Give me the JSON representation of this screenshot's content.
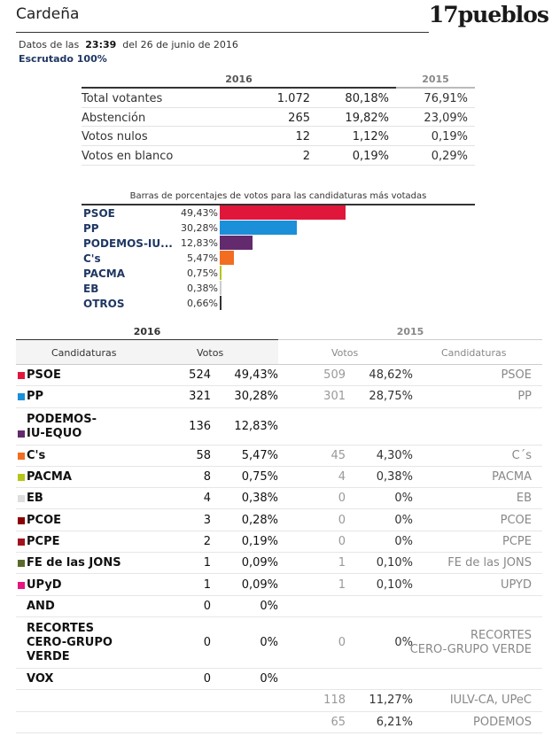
{
  "header": {
    "town": "Cardeña",
    "logo": "17pueblos"
  },
  "meta": {
    "data_prefix": "Datos de las",
    "time": "23:39",
    "date_text": "del 26 de junio de 2016",
    "scrutiny": "Escrutado 100%"
  },
  "summary": {
    "year_2016": "2016",
    "year_2015": "2015",
    "rows": [
      {
        "label": "Total votantes",
        "votes": "1.072",
        "pct2016": "80,18%",
        "pct2015": "76,91%"
      },
      {
        "label": "Abstención",
        "votes": "265",
        "pct2016": "19,82%",
        "pct2015": "23,09%"
      },
      {
        "label": "Votos nulos",
        "votes": "12",
        "pct2016": "1,12%",
        "pct2015": "0,19%"
      },
      {
        "label": "Votos en blanco",
        "votes": "2",
        "pct2016": "0,19%",
        "pct2015": "0,29%"
      }
    ]
  },
  "bars": {
    "title": "Barras de porcentajes de votos para las candidaturas más votadas",
    "items": [
      {
        "name": "PSOE",
        "pct_label": "49,43%",
        "value": 49.43,
        "color": "#e0173b"
      },
      {
        "name": "PP",
        "pct_label": "30,28%",
        "value": 30.28,
        "color": "#1b8fd8"
      },
      {
        "name": "PODEMOS-IU...",
        "pct_label": "12,83%",
        "value": 12.83,
        "color": "#632a6d"
      },
      {
        "name": "C's",
        "pct_label": "5,47%",
        "value": 5.47,
        "color": "#f26d21"
      },
      {
        "name": "PACMA",
        "pct_label": "0,75%",
        "value": 0.75,
        "color": "#b6c51a"
      },
      {
        "name": "EB",
        "pct_label": "0,38%",
        "value": 0.38,
        "color": "#cccccc"
      },
      {
        "name": "OTROS",
        "pct_label": "0,66%",
        "value": 0.66,
        "color": "#333333"
      }
    ]
  },
  "results": {
    "year_2016": "2016",
    "year_2015": "2015",
    "col_candidaturas_2016": "Candidaturas",
    "col_votos_2016": "Votos",
    "col_votos_2015": "Votos",
    "col_candidaturas_2015": "Candidaturas",
    "rows": [
      {
        "name": "PSOE",
        "color": "#e0173b",
        "v2016": "524",
        "p2016": "49,43%",
        "v2015": "509",
        "p2015": "48,62%",
        "n2015": "PSOE"
      },
      {
        "name": "PP",
        "color": "#1b8fd8",
        "v2016": "321",
        "p2016": "30,28%",
        "v2015": "301",
        "p2015": "28,75%",
        "n2015": "PP"
      },
      {
        "name": "PODEMOS-\nIU-EQUO",
        "color": "#632a6d",
        "v2016": "136",
        "p2016": "12,83%",
        "v2015": "",
        "p2015": "",
        "n2015": ""
      },
      {
        "name": "C's",
        "color": "#f26d21",
        "v2016": "58",
        "p2016": "5,47%",
        "v2015": "45",
        "p2015": "4,30%",
        "n2015": "C´s"
      },
      {
        "name": "PACMA",
        "color": "#b6c51a",
        "v2016": "8",
        "p2016": "0,75%",
        "v2015": "4",
        "p2015": "0,38%",
        "n2015": "PACMA"
      },
      {
        "name": "EB",
        "color": "#dddddd",
        "v2016": "4",
        "p2016": "0,38%",
        "v2015": "0",
        "p2015": "0%",
        "n2015": "EB"
      },
      {
        "name": "PCOE",
        "color": "#8b0000",
        "v2016": "3",
        "p2016": "0,28%",
        "v2015": "0",
        "p2015": "0%",
        "n2015": "PCOE"
      },
      {
        "name": "PCPE",
        "color": "#a0141e",
        "v2016": "2",
        "p2016": "0,19%",
        "v2015": "0",
        "p2015": "0%",
        "n2015": "PCPE"
      },
      {
        "name": "FE de las JONS",
        "color": "#5b6a2a",
        "v2016": "1",
        "p2016": "0,09%",
        "v2015": "1",
        "p2015": "0,10%",
        "n2015": "FE de las JONS"
      },
      {
        "name": "UPyD",
        "color": "#e6157f",
        "v2016": "1",
        "p2016": "0,09%",
        "v2015": "1",
        "p2015": "0,10%",
        "n2015": "UPYD"
      },
      {
        "name": "AND",
        "color": "",
        "v2016": "0",
        "p2016": "0%",
        "v2015": "",
        "p2015": "",
        "n2015": ""
      },
      {
        "name": "RECORTES\nCERO-GRUPO\nVERDE",
        "color": "",
        "v2016": "0",
        "p2016": "0%",
        "v2015": "0",
        "p2015": "0%",
        "n2015": "RECORTES\nCERO-GRUPO VERDE"
      },
      {
        "name": "VOX",
        "color": "",
        "v2016": "0",
        "p2016": "0%",
        "v2015": "",
        "p2015": "",
        "n2015": ""
      },
      {
        "name": "",
        "color": "",
        "v2016": "",
        "p2016": "",
        "v2015": "118",
        "p2015": "11,27%",
        "n2015": "IULV-CA, UPeC"
      },
      {
        "name": "",
        "color": "",
        "v2016": "",
        "p2016": "",
        "v2015": "65",
        "p2015": "6,21%",
        "n2015": "PODEMOS"
      }
    ]
  }
}
